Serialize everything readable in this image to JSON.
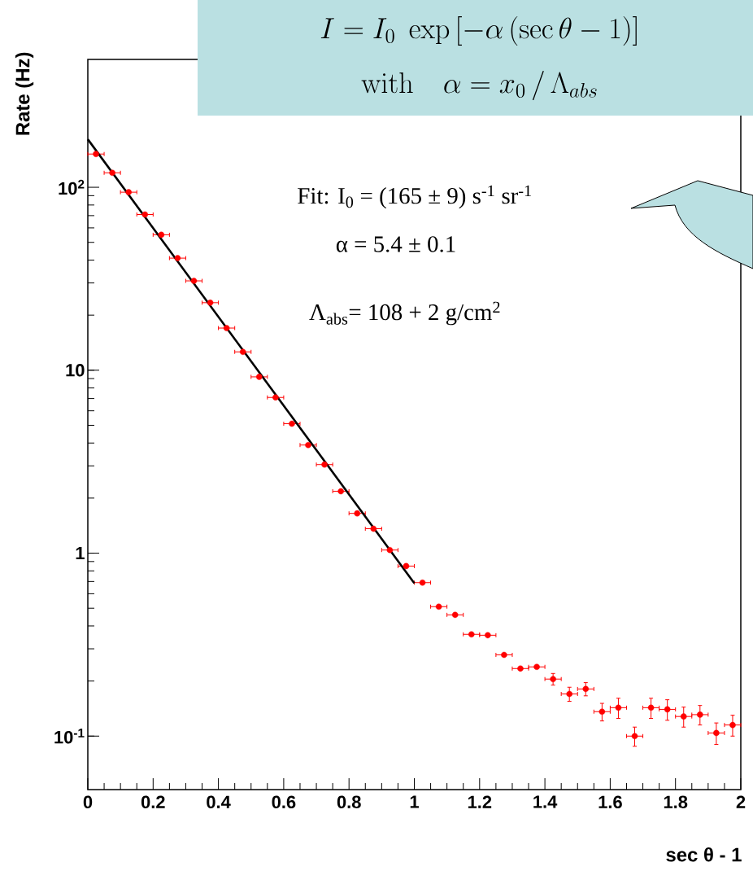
{
  "chart_data": {
    "type": "scatter",
    "xlabel": "sec θ - 1",
    "ylabel": "Rate (Hz)",
    "log": "y",
    "xlim": [
      0,
      2
    ],
    "ylim": [
      0.051,
      500
    ],
    "xticks": [
      0,
      0.2,
      0.4,
      0.6,
      0.8,
      1,
      1.2,
      1.4,
      1.6,
      1.8,
      2
    ],
    "yticks": [
      {
        "value": 0.1,
        "label": "10$^{-1}$"
      },
      1,
      10,
      {
        "value": 100,
        "label": "10$^{2}$"
      }
    ],
    "grid": false,
    "annotations": [
      "I = I_0\\;\\exp\\left[-\\alpha\\left(\\sec\\theta-1\\right)\\right]",
      "\\mathrm{with}\\quad \\alpha = x_0\\,/\\,\\Lambda_{abs}",
      "Fit: I$_{0}$ = (165 ± 9) s$^{-1}$ sr$^{-1}$",
      "α = 5.4 ± 0.1",
      "Λ$_{abs}$= 108 + 2 g/cm$^{2}$"
    ],
    "series": [
      {
        "color": "#ff0000",
        "marker": "circle",
        "x": [
          0.025,
          0.075,
          0.125,
          0.175,
          0.225,
          0.275,
          0.325,
          0.375,
          0.425,
          0.475,
          0.525,
          0.575,
          0.625,
          0.675,
          0.725,
          0.775,
          0.825,
          0.875,
          0.925,
          0.975,
          1.025,
          1.075,
          1.125,
          1.175,
          1.225,
          1.275,
          1.325,
          1.375,
          1.425,
          1.475,
          1.525,
          1.575,
          1.625,
          1.675,
          1.725,
          1.775,
          1.825,
          1.875,
          1.925,
          1.975
        ],
        "values": [
          152,
          120,
          94,
          71,
          55,
          41,
          30.8,
          23.4,
          17.0,
          12.6,
          9.2,
          7.1,
          5.1,
          3.9,
          3.05,
          2.18,
          1.65,
          1.36,
          1.04,
          0.85,
          0.69,
          0.51,
          0.46,
          0.36,
          0.356,
          0.278,
          0.234,
          0.239,
          0.205,
          0.17,
          0.181,
          0.136,
          0.143,
          0.1,
          0.143,
          0.14,
          0.128,
          0.131,
          0.104,
          0.115
        ],
        "xerrors": [
          0.025,
          0.025,
          0.025,
          0.025,
          0.025,
          0.025,
          0.025,
          0.025,
          0.025,
          0.025,
          0.025,
          0.025,
          0.025,
          0.025,
          0.025,
          0.025,
          0.025,
          0.025,
          0.025,
          0.025,
          0.025,
          0.025,
          0.025,
          0.025,
          0.025,
          0.025,
          0.025,
          0.025,
          0.025,
          0.025,
          0.025,
          0.025,
          0.025,
          0.025,
          0.025,
          0.025,
          0.025,
          0.025,
          0.025,
          0.025
        ],
        "errors": [
          null,
          null,
          null,
          null,
          null,
          null,
          null,
          null,
          null,
          null,
          null,
          null,
          null,
          null,
          null,
          null,
          null,
          null,
          null,
          null,
          null,
          null,
          null,
          null,
          null,
          null,
          null,
          null,
          0.015,
          0.015,
          0.015,
          0.015,
          0.018,
          0.012,
          0.018,
          0.018,
          0.016,
          0.016,
          0.014,
          0.015
        ]
      },
      {
        "type": "line",
        "color": "#000000",
        "marker": "none",
        "line_style": "solid",
        "x": [
          0,
          1
        ],
        "values": [
          183,
          0.685
        ]
      }
    ]
  }
}
